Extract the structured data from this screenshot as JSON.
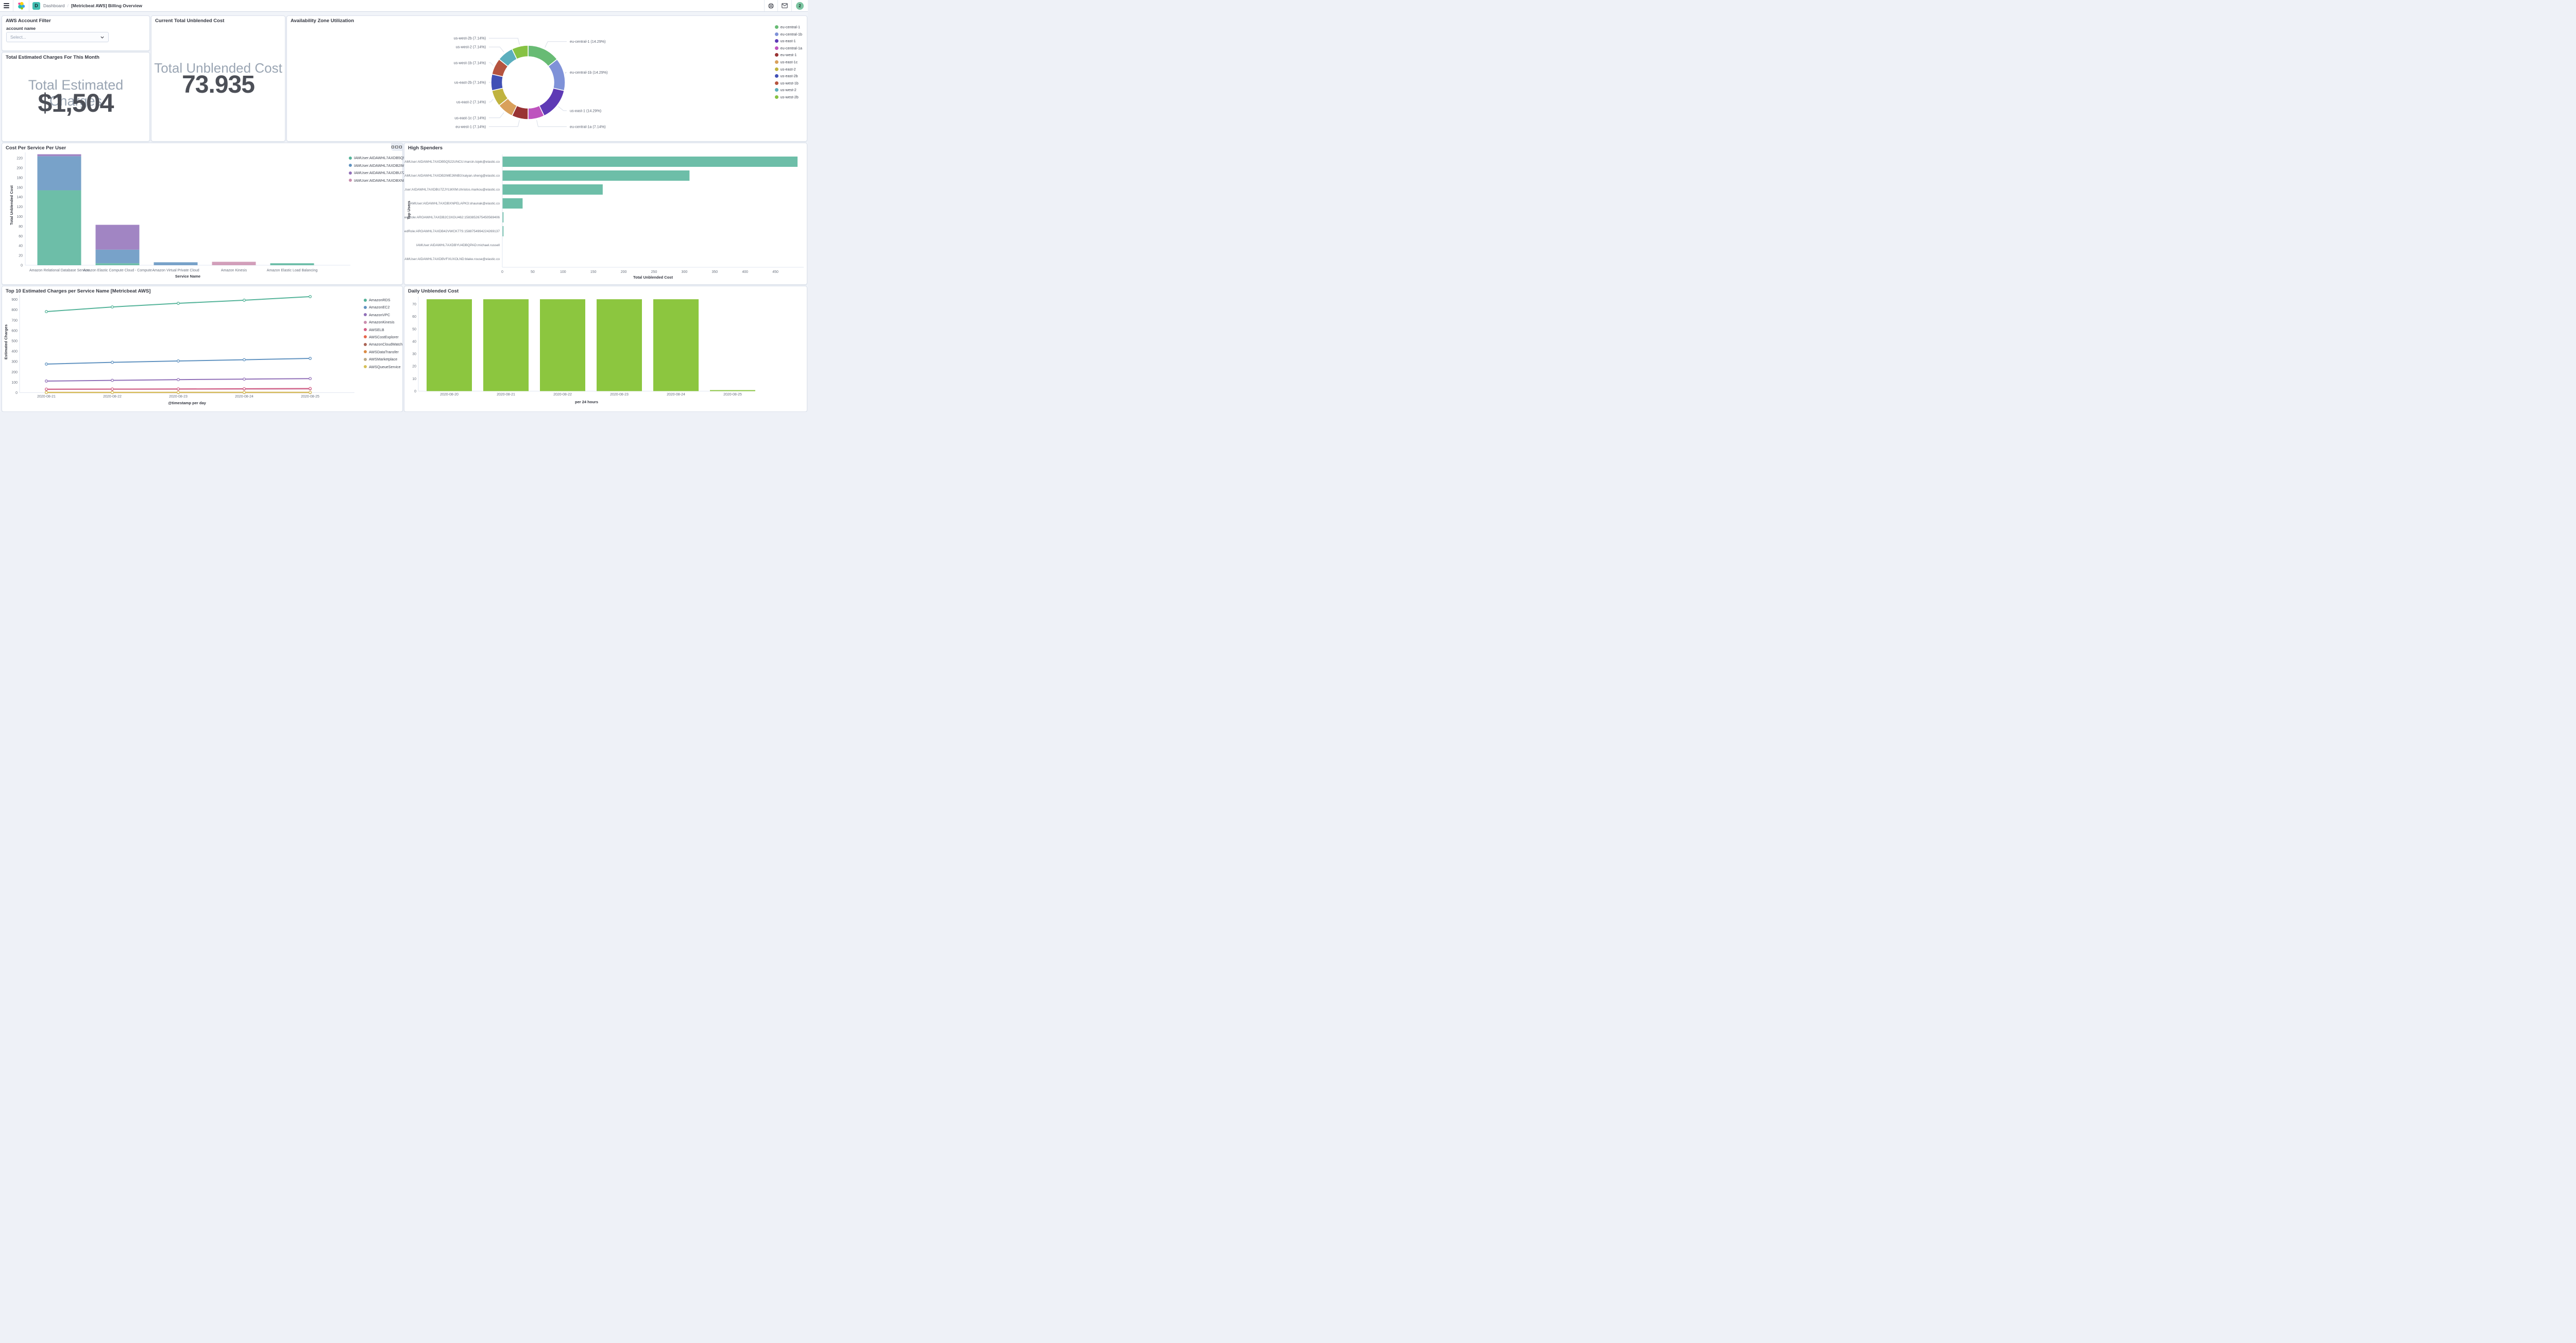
{
  "header": {
    "breadcrumb": {
      "root": "Dashboard",
      "separator": "/",
      "current": "[Metricbeat AWS] Billing Overview"
    },
    "space_badge": "D",
    "avatar_text": "2",
    "avatar_color": "#7cc5a1",
    "space_badge_color": "#43bfb3"
  },
  "panels": {
    "account_filter": {
      "title": "AWS Account Filter",
      "field_label": "account name",
      "select_placeholder": "Select..."
    },
    "estimated_charges": {
      "title": "Total Estimated Charges For This Month",
      "metric_label": "Total Estimated Charges",
      "metric_value": "$1,504"
    },
    "current_unblended": {
      "title": "Current Total Unblended Cost",
      "metric_label": "Total Unblended Cost",
      "metric_value": "73.935"
    },
    "az_utilization": {
      "title": "Availability Zone Utilization"
    },
    "cost_per_service": {
      "title": "Cost Per Service Per User"
    },
    "high_spenders": {
      "title": "High Spenders"
    },
    "top10": {
      "title": "Top 10 Estimated Charges per Service Name [Metricbeat AWS]"
    },
    "daily": {
      "title": "Daily Unblended Cost"
    }
  },
  "chart_data": [
    {
      "id": "az_donut",
      "type": "pie",
      "title": "Availability Zone Utilization",
      "labels": [
        "eu-central-1",
        "eu-central-1b",
        "us-east-1",
        "eu-central-1a",
        "eu-west-1",
        "us-east-1c",
        "us-east-2",
        "us-east-2b",
        "us-west-1b",
        "us-west-2",
        "us-west-2b"
      ],
      "values": [
        14.29,
        14.29,
        14.29,
        7.14,
        7.14,
        7.14,
        7.14,
        7.14,
        7.14,
        7.14,
        7.14
      ],
      "colors": [
        "#68BB74",
        "#7F92D8",
        "#5E3AB5",
        "#BE53BE",
        "#993333",
        "#D9A05B",
        "#C0B33F",
        "#4150B5",
        "#B5543F",
        "#5BAEBD",
        "#86C243"
      ],
      "callout_labels": [
        "eu-central-1 (14.29%)",
        "eu-central-1b (14.29%)",
        "us-east-1 (14.29%)",
        "eu-central-1a (7.14%)",
        "eu-west-1 (7.14%)",
        "us-east-1c (7.14%)",
        "us-east-2 (7.14%)",
        "us-east-2b (7.14%)",
        "us-west-1b (7.14%)",
        "us-west-2 (7.14%)",
        "us-west-2b (7.14%)"
      ],
      "legend_position": "right",
      "donut": true
    },
    {
      "id": "cost_per_service_per_user",
      "type": "bar",
      "stacked": true,
      "title": "Cost Per Service Per User",
      "categories": [
        "Amazon Relational Database Service",
        "Amazon Elastic Compute Cloud - Compute",
        "Amazon Virtual Private Cloud",
        "Amazon Kinesis",
        "Amazon Elastic Load Balancing"
      ],
      "series": [
        {
          "name": "IAMUser:AIDAWHL7AXDB5Q5...",
          "color": "#54B399",
          "values": [
            154,
            4,
            0,
            0,
            4
          ]
        },
        {
          "name": "IAMUser:AIDAWHL7AXDB2IM...",
          "color": "#6092C0",
          "values": [
            70,
            28,
            6,
            0,
            0
          ]
        },
        {
          "name": "IAMUser:AIDAWHL7AXDBU7Z...",
          "color": "#9170B8",
          "values": [
            4,
            51,
            0,
            0,
            0
          ]
        },
        {
          "name": "IAMUser:AIDAWHL7AXDBXNP...",
          "color": "#CA8EAE",
          "values": [
            0,
            0,
            0,
            7,
            0
          ]
        }
      ],
      "xlabel": "Service Name",
      "ylabel": "Total Unblended Cost",
      "yticks": [
        0,
        20,
        40,
        60,
        80,
        100,
        120,
        140,
        160,
        180,
        200,
        220
      ],
      "ylim": [
        0,
        230
      ],
      "legend_position": "right",
      "grid": false
    },
    {
      "id": "high_spenders",
      "type": "bar",
      "orientation": "horizontal",
      "title": "High Spenders",
      "categories": [
        "IAMUser:AIDAWHL7AXDB5Q522UNCU:marcin.tojek@elastic.co",
        "IAMUser:AIDAWHL7AXDB2IME26NB3:kaiyan.sheng@elastic.co",
        "IAMUser:AIDAWHL7AXDBU7ZJYLWXM:christos.markou@elastic.co",
        "IAMUser:AIDAWHL7AXDBXNPELAPK3:shaunak@elastic.co",
        "AssumedRole:AROAWHL7AXDB2C3XGU462:1583852675450569406",
        "AssumedRole:AROAWHL7AXDB42VWCK77S:1588754994224269137",
        "IAMUser:AIDAWHL7AXDBYU4DBQPAD:michael.russell",
        "IAMUser:AIDAWHL7AXDBVFXUXOLND:blake.rouse@elastic.co"
      ],
      "values": [
        486,
        308,
        165,
        33,
        1.5,
        1.5,
        0,
        0
      ],
      "color": "#54B399",
      "xlabel": "Total Unblended Cost",
      "ylabel": "Top Users",
      "xticks": [
        0,
        50,
        100,
        150,
        200,
        250,
        300,
        350,
        400,
        450
      ],
      "xlim": [
        0,
        490
      ],
      "grid": false
    },
    {
      "id": "top10_estimated_charges",
      "type": "line",
      "title": "Top 10 Estimated Charges per Service Name [Metricbeat AWS]",
      "x": [
        "2020-08-21",
        "2020-08-22",
        "2020-08-23",
        "2020-08-24",
        "2020-08-25"
      ],
      "series": [
        {
          "name": "AmazonRDS",
          "color": "#54B399",
          "values": [
            783,
            828,
            863,
            893,
            928
          ]
        },
        {
          "name": "AmazonEC2",
          "color": "#6092C0",
          "values": [
            276,
            293,
            306,
            318,
            331
          ]
        },
        {
          "name": "AmazonVPC",
          "color": "#9170B8",
          "values": [
            112,
            119,
            126,
            131,
            136
          ]
        },
        {
          "name": "AmazonKinesis",
          "color": "#CA8EAE",
          "values": [
            31,
            33,
            34,
            35,
            36
          ]
        },
        {
          "name": "AWSELB",
          "color": "#D36086",
          "values": [
            34,
            35,
            36,
            38,
            40
          ]
        },
        {
          "name": "AWSCostExplorer",
          "color": "#E7664C",
          "values": [
            3,
            3,
            3,
            3,
            3
          ]
        },
        {
          "name": "AmazonCloudWatch",
          "color": "#AA6556",
          "values": [
            2,
            2,
            2,
            2,
            2
          ]
        },
        {
          "name": "AWSDataTransfer",
          "color": "#DA8B45",
          "values": [
            2,
            2,
            2,
            2,
            2
          ]
        },
        {
          "name": "AWSMarketplace",
          "color": "#B9A888",
          "values": [
            1,
            1,
            1,
            1,
            1
          ]
        },
        {
          "name": "AWSQueueService",
          "color": "#D6BF57",
          "values": [
            2,
            2,
            3,
            3,
            3
          ]
        }
      ],
      "xlabel": "@timestamp per day",
      "ylabel": "Estimated Charges",
      "yticks": [
        0,
        100,
        200,
        300,
        400,
        500,
        600,
        700,
        800,
        900
      ],
      "ylim": [
        0,
        950
      ],
      "legend_position": "right",
      "grid": false
    },
    {
      "id": "daily_unblended_cost",
      "type": "bar",
      "title": "Daily Unblended Cost",
      "categories": [
        "2020-08-20",
        "2020-08-21",
        "2020-08-22",
        "2020-08-23",
        "2020-08-24",
        "2020-08-25"
      ],
      "values": [
        73.9,
        73.9,
        73.9,
        73.9,
        73.9,
        0.8
      ],
      "color": "#8CC63F",
      "xlabel": "per 24 hours",
      "ylabel": "",
      "yticks": [
        0,
        10,
        20,
        30,
        40,
        50,
        60,
        70
      ],
      "ylim": [
        0,
        75
      ],
      "grid": false
    }
  ]
}
